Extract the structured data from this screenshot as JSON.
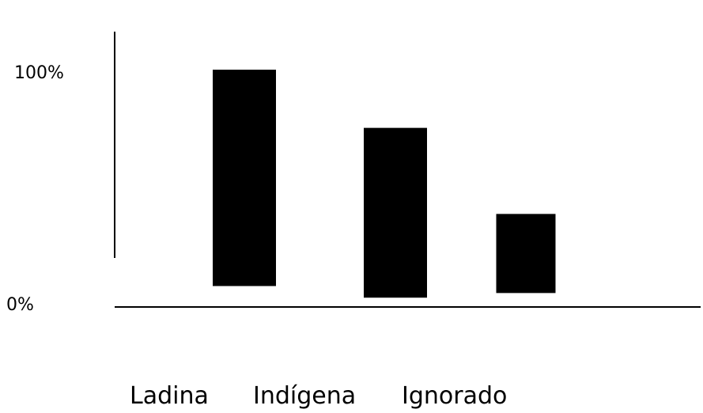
{
  "chart_data": {
    "type": "bar",
    "categories": [
      "Ladina",
      "Indígena",
      "Ignorado"
    ],
    "series": [
      {
        "values": [
          {
            "low": 9,
            "high": 102
          },
          {
            "low": 4,
            "high": 77
          },
          {
            "low": 6,
            "high": 40
          }
        ]
      }
    ],
    "yticks": [
      "0%",
      "100%"
    ],
    "ylim": [
      -17,
      104
    ],
    "colors": {
      "bar": "#000000",
      "axis": "#000000"
    },
    "grid": false,
    "legend": "none"
  }
}
